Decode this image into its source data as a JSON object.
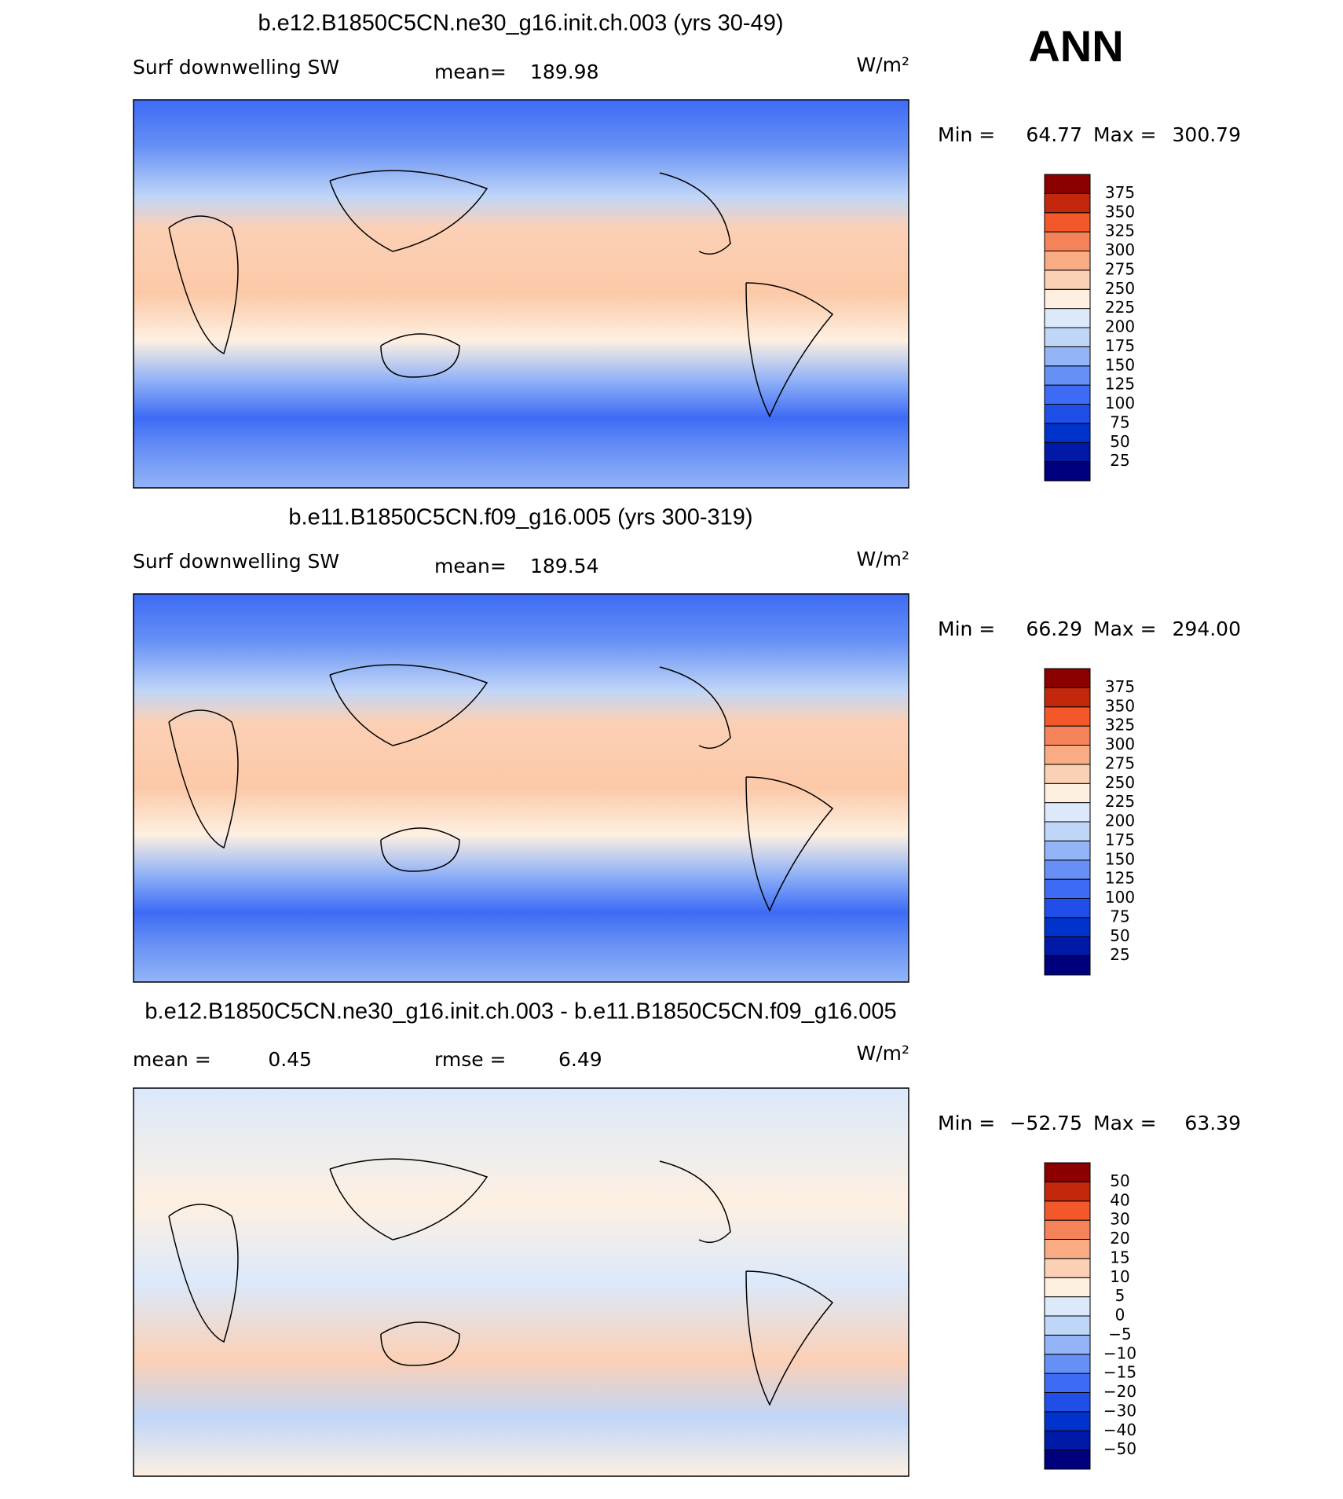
{
  "label_ann": "ANN",
  "panels": [
    {
      "title": "b.e12.B1850C5CN.ne30_g16.init.ch.003 (yrs 30-49)",
      "subtitle": "Surf downwelling SW",
      "mean_label": "mean=",
      "mean": 189.98,
      "units": "W/m²",
      "min_label": "Min =",
      "min": 64.77,
      "max_label": "Max =",
      "max": 300.79,
      "colorbar": {
        "levels": [
          25,
          50,
          75,
          100,
          125,
          150,
          175,
          200,
          225,
          250,
          275,
          300,
          325,
          350,
          375
        ],
        "colors": [
          "#00007f",
          "#0019a6",
          "#0033cc",
          "#1f4fe8",
          "#3d6bf5",
          "#6690f5",
          "#93b4f7",
          "#c0d6f8",
          "#dbe9fb",
          "#fef0e1",
          "#fcd0b5",
          "#f9ab84",
          "#f5835a",
          "#f2582a",
          "#c4280c",
          "#8b0000"
        ]
      }
    },
    {
      "title": "b.e11.B1850C5CN.f09_g16.005 (yrs 300-319)",
      "subtitle": "Surf downwelling SW",
      "mean_label": "mean=",
      "mean": 189.54,
      "units": "W/m²",
      "min_label": "Min =",
      "min": 66.29,
      "max_label": "Max =",
      "max": {
        "value": 294,
        "label": "294.00"
      },
      "colorbar": {
        "levels": [
          25,
          50,
          75,
          100,
          125,
          150,
          175,
          200,
          225,
          250,
          275,
          300,
          325,
          350,
          375
        ],
        "colors": [
          "#00007f",
          "#0019a6",
          "#0033cc",
          "#1f4fe8",
          "#3d6bf5",
          "#6690f5",
          "#93b4f7",
          "#c0d6f8",
          "#dbe9fb",
          "#fef0e1",
          "#fcd0b5",
          "#f9ab84",
          "#f5835a",
          "#f2582a",
          "#c4280c",
          "#8b0000"
        ]
      }
    },
    {
      "title": "b.e12.B1850C5CN.ne30_g16.init.ch.003 - b.e11.B1850C5CN.f09_g16.005",
      "mean_label": "mean =",
      "mean": 0.45,
      "rmse_label": "rmse =",
      "rmse": 6.49,
      "units": "W/m²",
      "min_label": "Min =",
      "min": {
        "value": -52.75,
        "label": "−52.75"
      },
      "max_label": "Max =",
      "max": 63.39,
      "colorbar": {
        "levels": [
          {
            "value": -50,
            "label": "−50"
          },
          {
            "value": -40,
            "label": "−40"
          },
          {
            "value": -30,
            "label": "−30"
          },
          {
            "value": -20,
            "label": "−20"
          },
          {
            "value": -15,
            "label": "−15"
          },
          {
            "value": -10,
            "label": "−10"
          },
          {
            "value": -5,
            "label": "−5"
          },
          0,
          5,
          10,
          15,
          20,
          30,
          40,
          50
        ],
        "colors": [
          "#00007f",
          "#0019a6",
          "#0033cc",
          "#1f4fe8",
          "#3d6bf5",
          "#6690f5",
          "#93b4f7",
          "#c0d6f8",
          "#dbe9fb",
          "#fef0e1",
          "#fcd0b5",
          "#f9ab84",
          "#f5835a",
          "#f2582a",
          "#c4280c",
          "#8b0000"
        ]
      }
    }
  ]
}
